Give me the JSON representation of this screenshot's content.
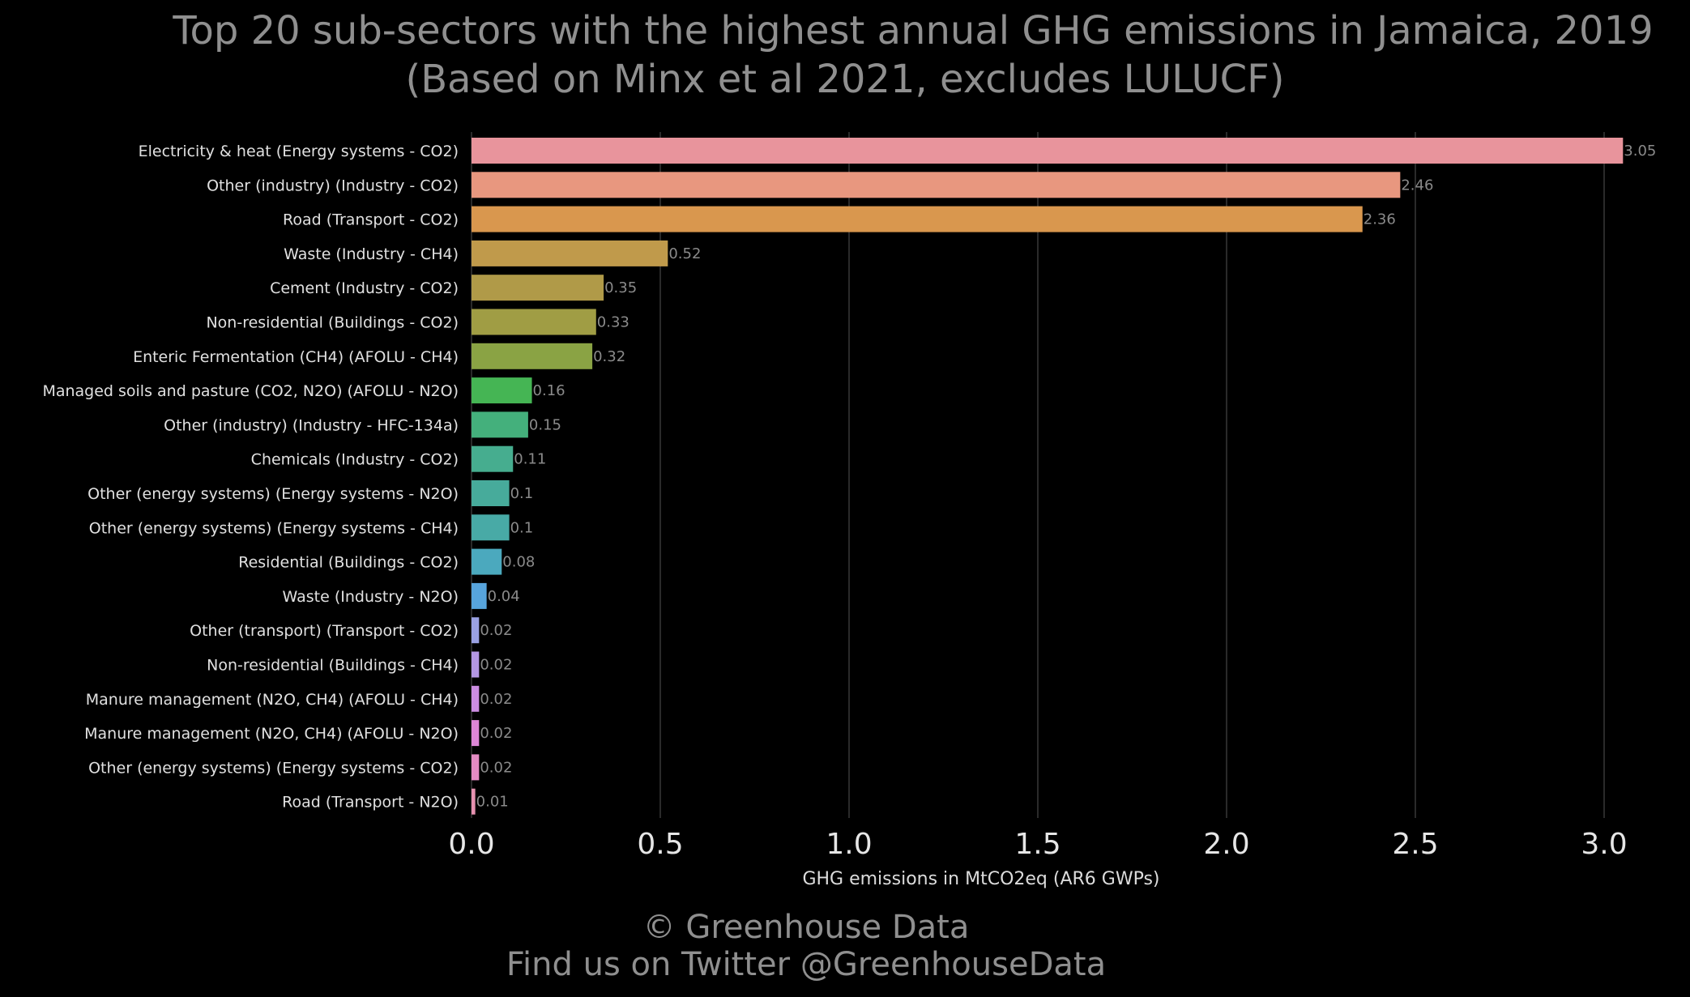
{
  "title": {
    "line1": "Top 20 sub-sectors with the highest annual GHG emissions in Jamaica, 2019",
    "line2": "(Based on Minx et al 2021, excludes LULUCF)"
  },
  "footer": {
    "line1": "© Greenhouse Data",
    "line2": "Find us on Twitter @GreenhouseData"
  },
  "chart_data": {
    "type": "bar",
    "orientation": "horizontal",
    "xlabel": "GHG emissions in MtCO2eq (AR6 GWPs)",
    "xlim": [
      0,
      3.05
    ],
    "xticks": [
      "0.0",
      "0.5",
      "1.0",
      "1.5",
      "2.0",
      "2.5",
      "3.0"
    ],
    "grid": true,
    "categories": [
      "Electricity & heat (Energy systems - CO2)",
      "Other (industry) (Industry - CO2)",
      "Road (Transport - CO2)",
      "Waste (Industry - CH4)",
      "Cement (Industry - CO2)",
      "Non-residential (Buildings - CO2)",
      "Enteric Fermentation (CH4) (AFOLU - CH4)",
      "Managed soils and pasture (CO2, N2O) (AFOLU - N2O)",
      "Other (industry) (Industry - HFC-134a)",
      "Chemicals (Industry - CO2)",
      "Other (energy systems) (Energy systems - N2O)",
      "Other (energy systems) (Energy systems - CH4)",
      "Residential (Buildings - CO2)",
      "Waste (Industry - N2O)",
      "Other (transport) (Transport - CO2)",
      "Non-residential (Buildings - CH4)",
      "Manure management (N2O, CH4) (AFOLU - CH4)",
      "Manure management (N2O, CH4) (AFOLU - N2O)",
      "Other (energy systems) (Energy systems - CO2)",
      "Road (Transport - N2O)"
    ],
    "values": [
      3.05,
      2.46,
      2.36,
      0.52,
      0.35,
      0.33,
      0.32,
      0.16,
      0.15,
      0.11,
      0.1,
      0.1,
      0.08,
      0.04,
      0.02,
      0.02,
      0.02,
      0.02,
      0.02,
      0.01
    ],
    "value_labels": [
      "3.05",
      "2.46",
      "2.36",
      "0.52",
      "0.35",
      "0.33",
      "0.32",
      "0.16",
      "0.15",
      "0.11",
      "0.1",
      "0.1",
      "0.08",
      "0.04",
      "0.02",
      "0.02",
      "0.02",
      "0.02",
      "0.02",
      "0.01"
    ],
    "colors": [
      "#e8949c",
      "#e8977f",
      "#d9974e",
      "#c09a4b",
      "#b09a48",
      "#a09d44",
      "#8aa344",
      "#45b554",
      "#44b07c",
      "#46ad8f",
      "#47ab9b",
      "#48aaa6",
      "#4ba9be",
      "#57a4dc",
      "#9aa1e3",
      "#b497e3",
      "#cc8de2",
      "#dd86d6",
      "#e48bc3",
      "#e791b0"
    ]
  }
}
